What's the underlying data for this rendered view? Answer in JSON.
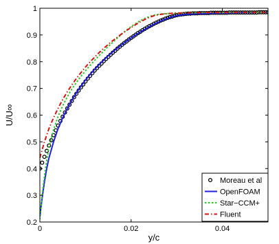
{
  "chart_data": {
    "type": "line",
    "xlabel": "y/c",
    "ylabel": "U/U∞",
    "xlim": [
      0,
      0.05
    ],
    "ylim": [
      0.2,
      1.0
    ],
    "xticks": [
      0,
      0.02,
      0.04
    ],
    "xtick_labels": [
      "0",
      "0.02",
      "0.04"
    ],
    "yticks": [
      0.2,
      0.3,
      0.4,
      0.5,
      0.6,
      0.7,
      0.8,
      0.9,
      1.0
    ],
    "ytick_labels": [
      "0.2",
      "0.3",
      "0.4",
      "0.5",
      "0.6",
      "0.7",
      "0.8",
      "0.9",
      "1"
    ],
    "grid": false,
    "legend_position": "bottom-right",
    "series": [
      {
        "name": "Moreau et al",
        "style": "markers",
        "color": "#000000",
        "x": [
          0.0,
          0.0005,
          0.001,
          0.0015,
          0.002,
          0.0025,
          0.003,
          0.0035,
          0.004,
          0.0045,
          0.005,
          0.0055,
          0.006,
          0.0065,
          0.007,
          0.0075,
          0.008,
          0.0085,
          0.009,
          0.0095,
          0.01,
          0.0105,
          0.011,
          0.0115,
          0.012,
          0.0125,
          0.013,
          0.0135,
          0.014,
          0.0145,
          0.015,
          0.0155,
          0.016,
          0.0165,
          0.017,
          0.0175,
          0.018,
          0.0185,
          0.019,
          0.0195,
          0.02,
          0.0205,
          0.021,
          0.0215,
          0.022,
          0.0225,
          0.023,
          0.0235,
          0.024,
          0.0245,
          0.025,
          0.0255,
          0.026,
          0.0265,
          0.027,
          0.0275,
          0.028,
          0.0285,
          0.029,
          0.0295,
          0.03,
          0.0305,
          0.031,
          0.0315,
          0.032,
          0.0325,
          0.033,
          0.0335,
          0.034,
          0.0345,
          0.035,
          0.0355,
          0.036,
          0.0365,
          0.037,
          0.0375,
          0.038,
          0.0385,
          0.039,
          0.0395,
          0.04,
          0.0405,
          0.041,
          0.0415,
          0.042,
          0.0425,
          0.043,
          0.0435,
          0.044,
          0.0445,
          0.045,
          0.0455,
          0.046,
          0.0465,
          0.047,
          0.0475,
          0.048,
          0.0485,
          0.049,
          0.0495,
          0.05
        ],
        "y": [
          0.4,
          0.422,
          0.444,
          0.466,
          0.486,
          0.506,
          0.525,
          0.543,
          0.561,
          0.578,
          0.594,
          0.61,
          0.625,
          0.639,
          0.653,
          0.667,
          0.68,
          0.692,
          0.704,
          0.715,
          0.726,
          0.737,
          0.747,
          0.757,
          0.767,
          0.776,
          0.785,
          0.793,
          0.802,
          0.81,
          0.818,
          0.826,
          0.834,
          0.841,
          0.849,
          0.856,
          0.863,
          0.87,
          0.876,
          0.883,
          0.889,
          0.895,
          0.901,
          0.907,
          0.912,
          0.918,
          0.923,
          0.928,
          0.933,
          0.937,
          0.942,
          0.946,
          0.95,
          0.954,
          0.957,
          0.961,
          0.964,
          0.967,
          0.969,
          0.972,
          0.974,
          0.976,
          0.977,
          0.978,
          0.979,
          0.98,
          0.98,
          0.981,
          0.981,
          0.981,
          0.982,
          0.982,
          0.982,
          0.982,
          0.982,
          0.983,
          0.983,
          0.983,
          0.983,
          0.983,
          0.983,
          0.983,
          0.983,
          0.984,
          0.984,
          0.984,
          0.984,
          0.984,
          0.984,
          0.984,
          0.984,
          0.984,
          0.984,
          0.984,
          0.984,
          0.984,
          0.985,
          0.985,
          0.985,
          0.985,
          0.985
        ]
      },
      {
        "name": "OpenFOAM",
        "style": "solid",
        "color": "#1f1fe0",
        "x": [
          0.0,
          0.0005,
          0.001,
          0.0015,
          0.002,
          0.003,
          0.004,
          0.005,
          0.006,
          0.007,
          0.008,
          0.009,
          0.01,
          0.011,
          0.012,
          0.013,
          0.014,
          0.015,
          0.016,
          0.017,
          0.018,
          0.019,
          0.02,
          0.021,
          0.022,
          0.023,
          0.024,
          0.025,
          0.026,
          0.027,
          0.028,
          0.029,
          0.03,
          0.032,
          0.034,
          0.036,
          0.038,
          0.04,
          0.042,
          0.044,
          0.046,
          0.048,
          0.05
        ],
        "y": [
          0.22,
          0.29,
          0.35,
          0.4,
          0.44,
          0.5,
          0.55,
          0.59,
          0.625,
          0.655,
          0.683,
          0.708,
          0.731,
          0.752,
          0.771,
          0.789,
          0.806,
          0.822,
          0.837,
          0.851,
          0.864,
          0.877,
          0.889,
          0.9,
          0.911,
          0.921,
          0.931,
          0.94,
          0.948,
          0.956,
          0.962,
          0.968,
          0.972,
          0.977,
          0.979,
          0.98,
          0.981,
          0.982,
          0.983,
          0.984,
          0.984,
          0.985,
          0.985
        ]
      },
      {
        "name": "Star−CCM+",
        "style": "dotted",
        "color": "#22cc22",
        "x": [
          0.0,
          0.0005,
          0.001,
          0.0015,
          0.002,
          0.003,
          0.004,
          0.005,
          0.006,
          0.007,
          0.008,
          0.009,
          0.01,
          0.011,
          0.012,
          0.013,
          0.014,
          0.015,
          0.016,
          0.017,
          0.018,
          0.019,
          0.02,
          0.021,
          0.022,
          0.023,
          0.024,
          0.025,
          0.026,
          0.027,
          0.028,
          0.029,
          0.03,
          0.032,
          0.034,
          0.036,
          0.038,
          0.04,
          0.042,
          0.044,
          0.046,
          0.048,
          0.05
        ],
        "y": [
          0.21,
          0.3,
          0.37,
          0.43,
          0.48,
          0.545,
          0.595,
          0.635,
          0.668,
          0.697,
          0.722,
          0.745,
          0.766,
          0.786,
          0.805,
          0.823,
          0.84,
          0.857,
          0.873,
          0.889,
          0.904,
          0.918,
          0.931,
          0.943,
          0.953,
          0.962,
          0.969,
          0.974,
          0.977,
          0.979,
          0.98,
          0.981,
          0.982,
          0.983,
          0.983,
          0.984,
          0.984,
          0.984,
          0.985,
          0.985,
          0.985,
          0.985,
          0.985
        ]
      },
      {
        "name": "Fluent",
        "style": "dashdot",
        "color": "#dd1111",
        "x": [
          0.0,
          0.0005,
          0.001,
          0.0015,
          0.002,
          0.003,
          0.004,
          0.005,
          0.006,
          0.007,
          0.008,
          0.009,
          0.01,
          0.011,
          0.012,
          0.013,
          0.014,
          0.015,
          0.016,
          0.017,
          0.018,
          0.019,
          0.02,
          0.021,
          0.022,
          0.023,
          0.024,
          0.025,
          0.026,
          0.027,
          0.028,
          0.029,
          0.03,
          0.032,
          0.034,
          0.036,
          0.038,
          0.04,
          0.042,
          0.044,
          0.046,
          0.048,
          0.05
        ],
        "y": [
          0.44,
          0.47,
          0.5,
          0.525,
          0.55,
          0.59,
          0.626,
          0.658,
          0.687,
          0.713,
          0.737,
          0.759,
          0.78,
          0.799,
          0.817,
          0.834,
          0.85,
          0.865,
          0.879,
          0.892,
          0.905,
          0.917,
          0.928,
          0.939,
          0.949,
          0.958,
          0.966,
          0.972,
          0.976,
          0.978,
          0.98,
          0.981,
          0.982,
          0.983,
          0.983,
          0.984,
          0.984,
          0.984,
          0.985,
          0.985,
          0.985,
          0.985,
          0.985
        ]
      }
    ]
  }
}
